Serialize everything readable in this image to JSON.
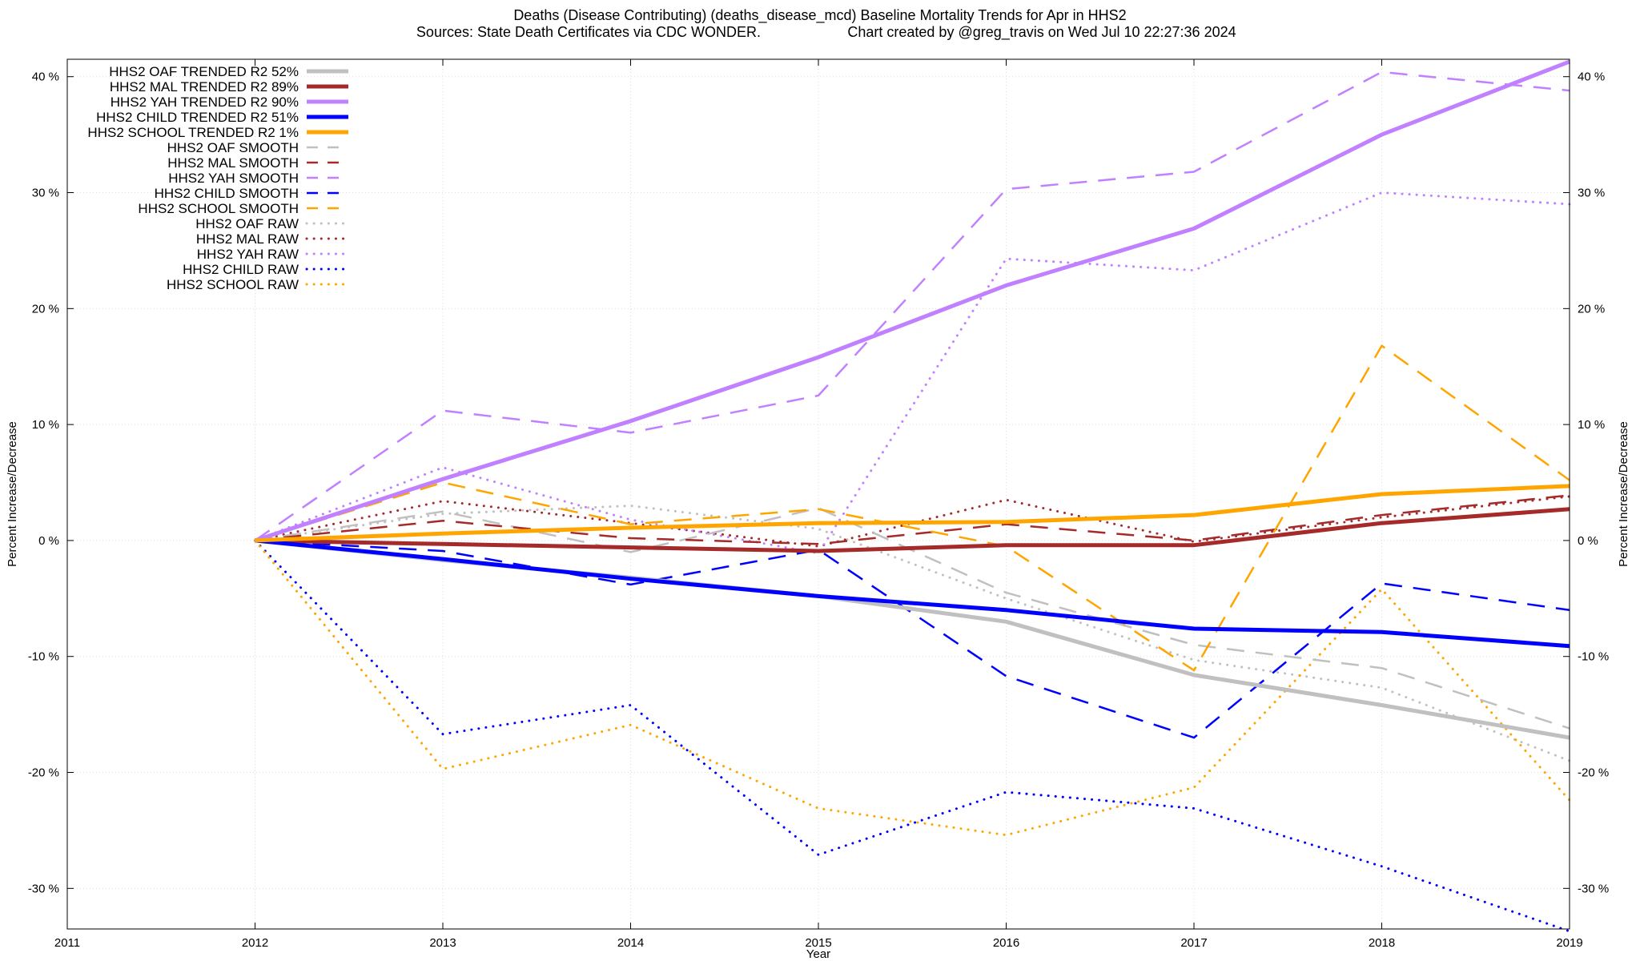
{
  "title_line1": "Deaths (Disease Contributing) (deaths_disease_mcd)  Baseline Mortality Trends for Apr in HHS2",
  "title_line2_left": "Sources: State Death Certificates via CDC WONDER.",
  "title_line2_right": "Chart created by @greg_travis on Wed Jul 10 22:27:36 2024",
  "chart_data": {
    "type": "line",
    "xlabel": "Year",
    "ylabel": "Percent Increase/Decrease",
    "y2label": "Percent Increase/Decrease",
    "xlim": [
      2011,
      2019
    ],
    "ylim": [
      -33.5,
      41.5
    ],
    "x_ticks": [
      2011,
      2012,
      2013,
      2014,
      2015,
      2016,
      2017,
      2018,
      2019
    ],
    "x_tick_labels": [
      "2011",
      "2012",
      "2013",
      "2014",
      "2015",
      "2016",
      "2017",
      "2018",
      "2019"
    ],
    "y_ticks": [
      -30,
      -20,
      -10,
      0,
      10,
      20,
      30,
      40
    ],
    "y_tick_labels": [
      "-30 %",
      "-20 %",
      "-10 %",
      "0 %",
      "10 %",
      "20 %",
      "30 %",
      "40 %"
    ],
    "grid": true,
    "legend_position": "top-left",
    "x": [
      2012,
      2013,
      2014,
      2015,
      2016,
      2017,
      2018,
      2019
    ],
    "series": [
      {
        "name": "HHS2 OAF TRENDED R2  52%",
        "group": "OAF",
        "kind": "trended",
        "color": "#c0c0c0",
        "values": [
          0,
          -1.7,
          -3.2,
          -4.8,
          -7.0,
          -11.6,
          -14.2,
          -17.0
        ]
      },
      {
        "name": "HHS2 MAL TRENDED R2  89%",
        "group": "MAL",
        "kind": "trended",
        "color": "#a52a2a",
        "values": [
          0,
          -0.3,
          -0.6,
          -0.9,
          -0.4,
          -0.4,
          1.5,
          2.7
        ]
      },
      {
        "name": "HHS2 YAH TRENDED R2  90%",
        "group": "YAH",
        "kind": "trended",
        "color": "#c080ff",
        "values": [
          0,
          5.3,
          10.3,
          15.8,
          22.0,
          26.9,
          35.0,
          41.3
        ]
      },
      {
        "name": "HHS2 CHILD TRENDED R2  51%",
        "group": "CHILD",
        "kind": "trended",
        "color": "#0000ff",
        "values": [
          0,
          -1.6,
          -3.3,
          -4.8,
          -6.0,
          -7.6,
          -7.9,
          -9.1
        ]
      },
      {
        "name": "HHS2 SCHOOL TRENDED R2   1%",
        "group": "SCHOOL",
        "kind": "trended",
        "color": "#ffa500",
        "values": [
          0,
          0.6,
          1.1,
          1.5,
          1.6,
          2.2,
          4.0,
          4.7
        ]
      },
      {
        "name": "HHS2 OAF SMOOTH",
        "group": "OAF",
        "kind": "smooth",
        "color": "#c0c0c0",
        "values": [
          0,
          2.5,
          -1.0,
          2.8,
          -4.5,
          -9.0,
          -11.0,
          -16.2
        ]
      },
      {
        "name": "HHS2 MAL SMOOTH",
        "group": "MAL",
        "kind": "smooth",
        "color": "#a52a2a",
        "values": [
          0,
          1.7,
          0.2,
          -0.3,
          1.4,
          0.0,
          2.2,
          3.9
        ]
      },
      {
        "name": "HHS2 YAH SMOOTH",
        "group": "YAH",
        "kind": "smooth",
        "color": "#c080ff",
        "values": [
          0,
          11.2,
          9.3,
          12.5,
          30.3,
          31.8,
          40.4,
          38.8
        ]
      },
      {
        "name": "HHS2 CHILD SMOOTH",
        "group": "CHILD",
        "kind": "smooth",
        "color": "#0000ff",
        "values": [
          0,
          -0.9,
          -3.8,
          -0.8,
          -11.7,
          -17.0,
          -3.7,
          -6.0
        ]
      },
      {
        "name": "HHS2 SCHOOL SMOOTH",
        "group": "SCHOOL",
        "kind": "smooth",
        "color": "#ffa500",
        "values": [
          0,
          5.0,
          1.4,
          2.7,
          -0.5,
          -11.2,
          16.8,
          5.2
        ]
      },
      {
        "name": "HHS2 OAF RAW",
        "group": "OAF",
        "kind": "raw",
        "color": "#c0c0c0",
        "values": [
          0,
          2.3,
          3.0,
          1.0,
          -5.0,
          -10.3,
          -12.7,
          -19.0
        ]
      },
      {
        "name": "HHS2 MAL RAW",
        "group": "MAL",
        "kind": "raw",
        "color": "#a52a2a",
        "values": [
          0,
          3.4,
          1.5,
          -0.5,
          3.5,
          -0.1,
          2.0,
          3.8
        ]
      },
      {
        "name": "HHS2 YAH RAW",
        "group": "YAH",
        "kind": "raw",
        "color": "#c080ff",
        "values": [
          0,
          6.3,
          1.8,
          -1.1,
          24.3,
          23.3,
          30.0,
          29.0
        ]
      },
      {
        "name": "HHS2 CHILD RAW",
        "group": "CHILD",
        "kind": "raw",
        "color": "#0000ff",
        "values": [
          0,
          -16.7,
          -14.2,
          -27.1,
          -21.7,
          -23.1,
          -28.1,
          -33.7
        ]
      },
      {
        "name": "HHS2 SCHOOL RAW",
        "group": "SCHOOL",
        "kind": "raw",
        "color": "#ffa500",
        "values": [
          0,
          -19.7,
          -15.9,
          -23.1,
          -25.4,
          -21.3,
          -4.2,
          -22.4
        ]
      }
    ]
  }
}
